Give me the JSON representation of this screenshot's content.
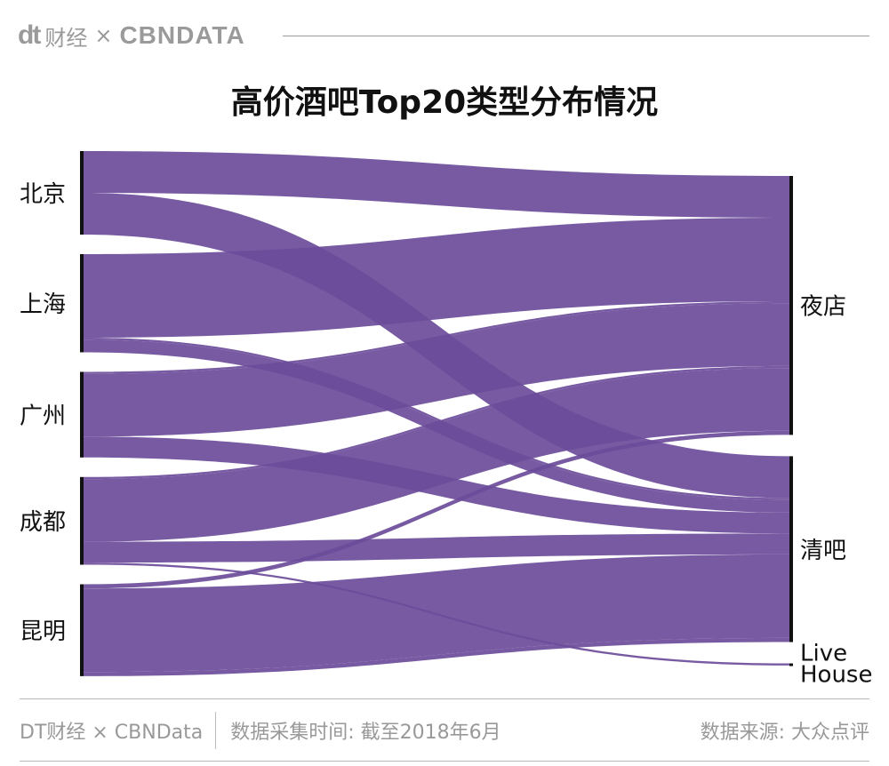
{
  "header": {
    "logo_mark": "dt",
    "logo_cn": "财经",
    "times": "×",
    "partner": "CBNDATA"
  },
  "chart_data": {
    "type": "sankey",
    "title": "高价酒吧Top20类型分布情况",
    "sources": [
      "北京",
      "上海",
      "广州",
      "成都",
      "昆明"
    ],
    "targets": [
      "夜店",
      "清吧",
      "Live House"
    ],
    "flows": [
      {
        "source": "北京",
        "target": "夜店",
        "value": 2
      },
      {
        "source": "北京",
        "target": "清吧",
        "value": 2
      },
      {
        "source": "上海",
        "target": "夜店",
        "value": 4
      },
      {
        "source": "上海",
        "target": "清吧",
        "value": 0.1
      },
      {
        "source": "上海",
        "target": "清吧",
        "value": 0.6
      },
      {
        "source": "广州",
        "target": "夜店",
        "value": 0.1
      },
      {
        "source": "广州",
        "target": "夜店",
        "value": 3
      },
      {
        "source": "广州",
        "target": "清吧",
        "value": 1
      },
      {
        "source": "成都",
        "target": "夜店",
        "value": 0.1
      },
      {
        "source": "成都",
        "target": "夜店",
        "value": 3
      },
      {
        "source": "成都",
        "target": "清吧",
        "value": 1
      },
      {
        "source": "成都",
        "target": "Live House",
        "value": 0.1
      },
      {
        "source": "昆明",
        "target": "夜店",
        "value": 0.2
      },
      {
        "source": "昆明",
        "target": "清吧",
        "value": 4
      },
      {
        "source": "昆明",
        "target": "清吧",
        "value": 0.2
      }
    ],
    "colors": {
      "flow": "#6b4c9a",
      "flow_opacity": 0.92,
      "node_bar": "#111111"
    }
  },
  "footer": {
    "brand": "DT财经 × CBNData",
    "time": "数据采集时间: 截至2018年6月",
    "source": "数据来源: 大众点评"
  }
}
